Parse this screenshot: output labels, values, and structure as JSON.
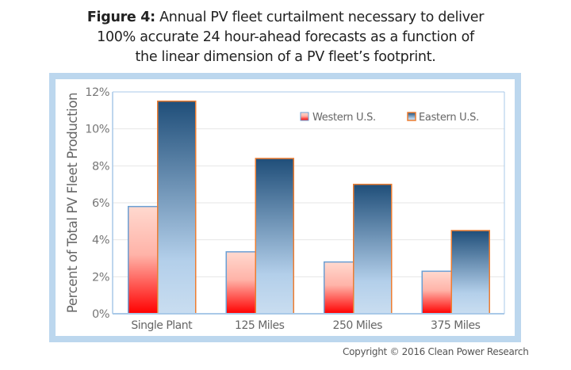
{
  "caption": {
    "label": "Figure 4:",
    "line1": " Annual PV fleet curtailment necessary to deliver",
    "line2": "100% accurate 24 hour-ahead forecasts as a function of",
    "line3": "the linear dimension of a PV fleet’s footprint."
  },
  "copyright": "Copyright © 2016 Clean Power Research",
  "colors": {
    "frame": "#bcd7ee",
    "west_top": "#ffd9cf",
    "west_bottom": "#ff0000",
    "west_border": "#6a9fd4",
    "east_top": "#1f4e79",
    "east_bottom": "#c9ddf0",
    "east_border": "#ed7d31",
    "grid": "#e6e6e6",
    "axis": "#a9c9e8"
  },
  "chart_data": {
    "type": "bar",
    "title": "",
    "xlabel": "",
    "ylabel": "Percent of Total PV Fleet Production",
    "ylim": [
      0,
      12
    ],
    "yticks": [
      "0%",
      "2%",
      "4%",
      "6%",
      "8%",
      "10%",
      "12%"
    ],
    "ytick_values": [
      0,
      2,
      4,
      6,
      8,
      10,
      12
    ],
    "grid": true,
    "legend_position": "top-right",
    "categories": [
      "Single Plant",
      "125 Miles",
      "250 Miles",
      "375 Miles"
    ],
    "series": [
      {
        "name": "Western U.S.",
        "values": [
          5.8,
          3.35,
          2.8,
          2.3
        ]
      },
      {
        "name": "Eastern U.S.",
        "values": [
          11.5,
          8.4,
          7.0,
          4.5
        ]
      }
    ]
  }
}
